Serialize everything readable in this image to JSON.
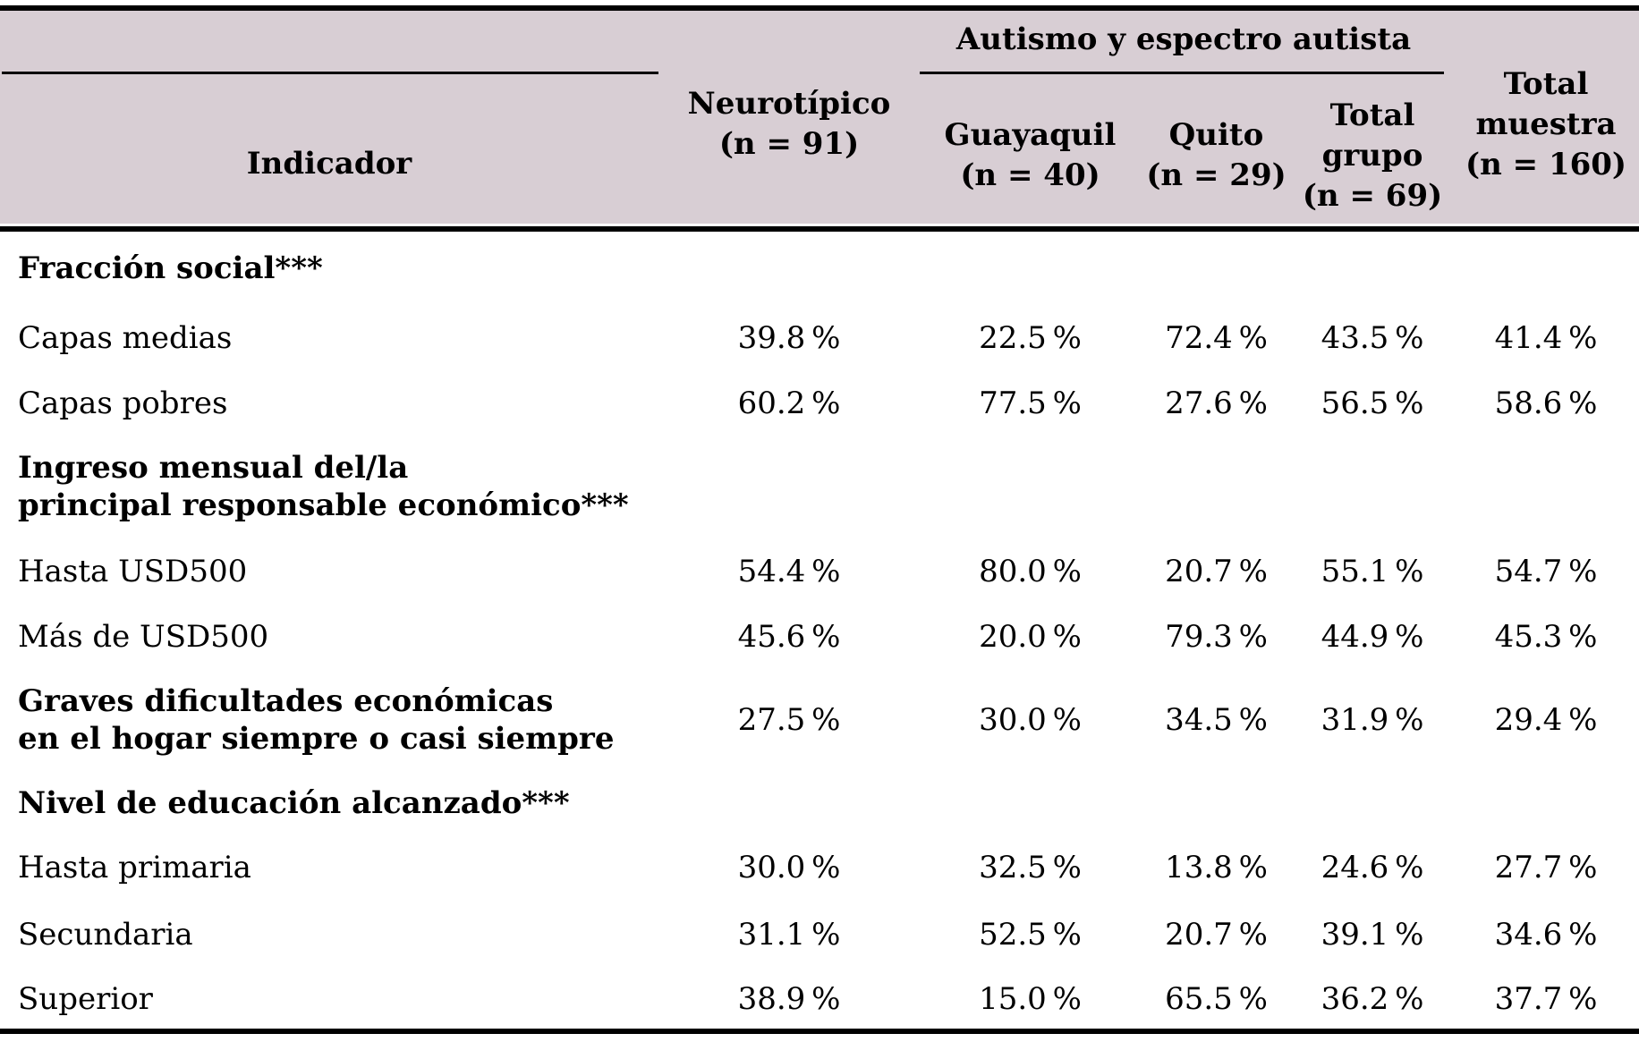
{
  "colors": {
    "header_bg": "#d8ced4",
    "rule": "#000000",
    "text": "#000000"
  },
  "table": {
    "header": {
      "indicator": "Indicador",
      "neurotipico": "Neurotípico\n(n = 91)",
      "group": "Autismo y espectro autista",
      "guayaquil": "Guayaquil\n(n = 40)",
      "quito": "Quito\n(n = 29)",
      "total_grupo": "Total\ngrupo\n(n = 69)",
      "total_muestra": "Total\nmuestra\n(n = 160)"
    },
    "rows": [
      {
        "label": "Fracción social***",
        "bold": true,
        "values": [
          "",
          "",
          "",
          "",
          ""
        ]
      },
      {
        "label": "Capas medias",
        "bold": false,
        "values": [
          "39.8 %",
          "22.5 %",
          "72.4 %",
          "43.5 %",
          "41.4 %"
        ]
      },
      {
        "label": "Capas pobres",
        "bold": false,
        "values": [
          "60.2 %",
          "77.5 %",
          "27.6 %",
          "56.5 %",
          "58.6 %"
        ]
      },
      {
        "label": "Ingreso mensual del/la\nprincipal responsable económico***",
        "bold": true,
        "values": [
          "",
          "",
          "",
          "",
          ""
        ]
      },
      {
        "label": "Hasta USD500",
        "bold": false,
        "values": [
          "54.4 %",
          "80.0 %",
          "20.7 %",
          "55.1 %",
          "54.7 %"
        ]
      },
      {
        "label": "Más de USD500",
        "bold": false,
        "values": [
          "45.6 %",
          "20.0 %",
          "79.3 %",
          "44.9 %",
          "45.3 %"
        ]
      },
      {
        "label": "Graves dificultades económicas\nen el hogar siempre o casi siempre",
        "bold": true,
        "values": [
          "27.5 %",
          "30.0 %",
          "34.5 %",
          "31.9 %",
          "29.4 %"
        ]
      },
      {
        "label": "Nivel de educación alcanzado***",
        "bold": true,
        "values": [
          "",
          "",
          "",
          "",
          ""
        ]
      },
      {
        "label": "Hasta primaria",
        "bold": false,
        "values": [
          "30.0 %",
          "32.5 %",
          "13.8 %",
          "24.6 %",
          "27.7 %"
        ]
      },
      {
        "label": "Secundaria",
        "bold": false,
        "values": [
          "31.1 %",
          "52.5 %",
          "20.7 %",
          "39.1 %",
          "34.6 %"
        ]
      },
      {
        "label": "Superior",
        "bold": false,
        "values": [
          "38.9 %",
          "15.0 %",
          "65.5 %",
          "36.2 %",
          "37.7 %"
        ]
      }
    ]
  }
}
